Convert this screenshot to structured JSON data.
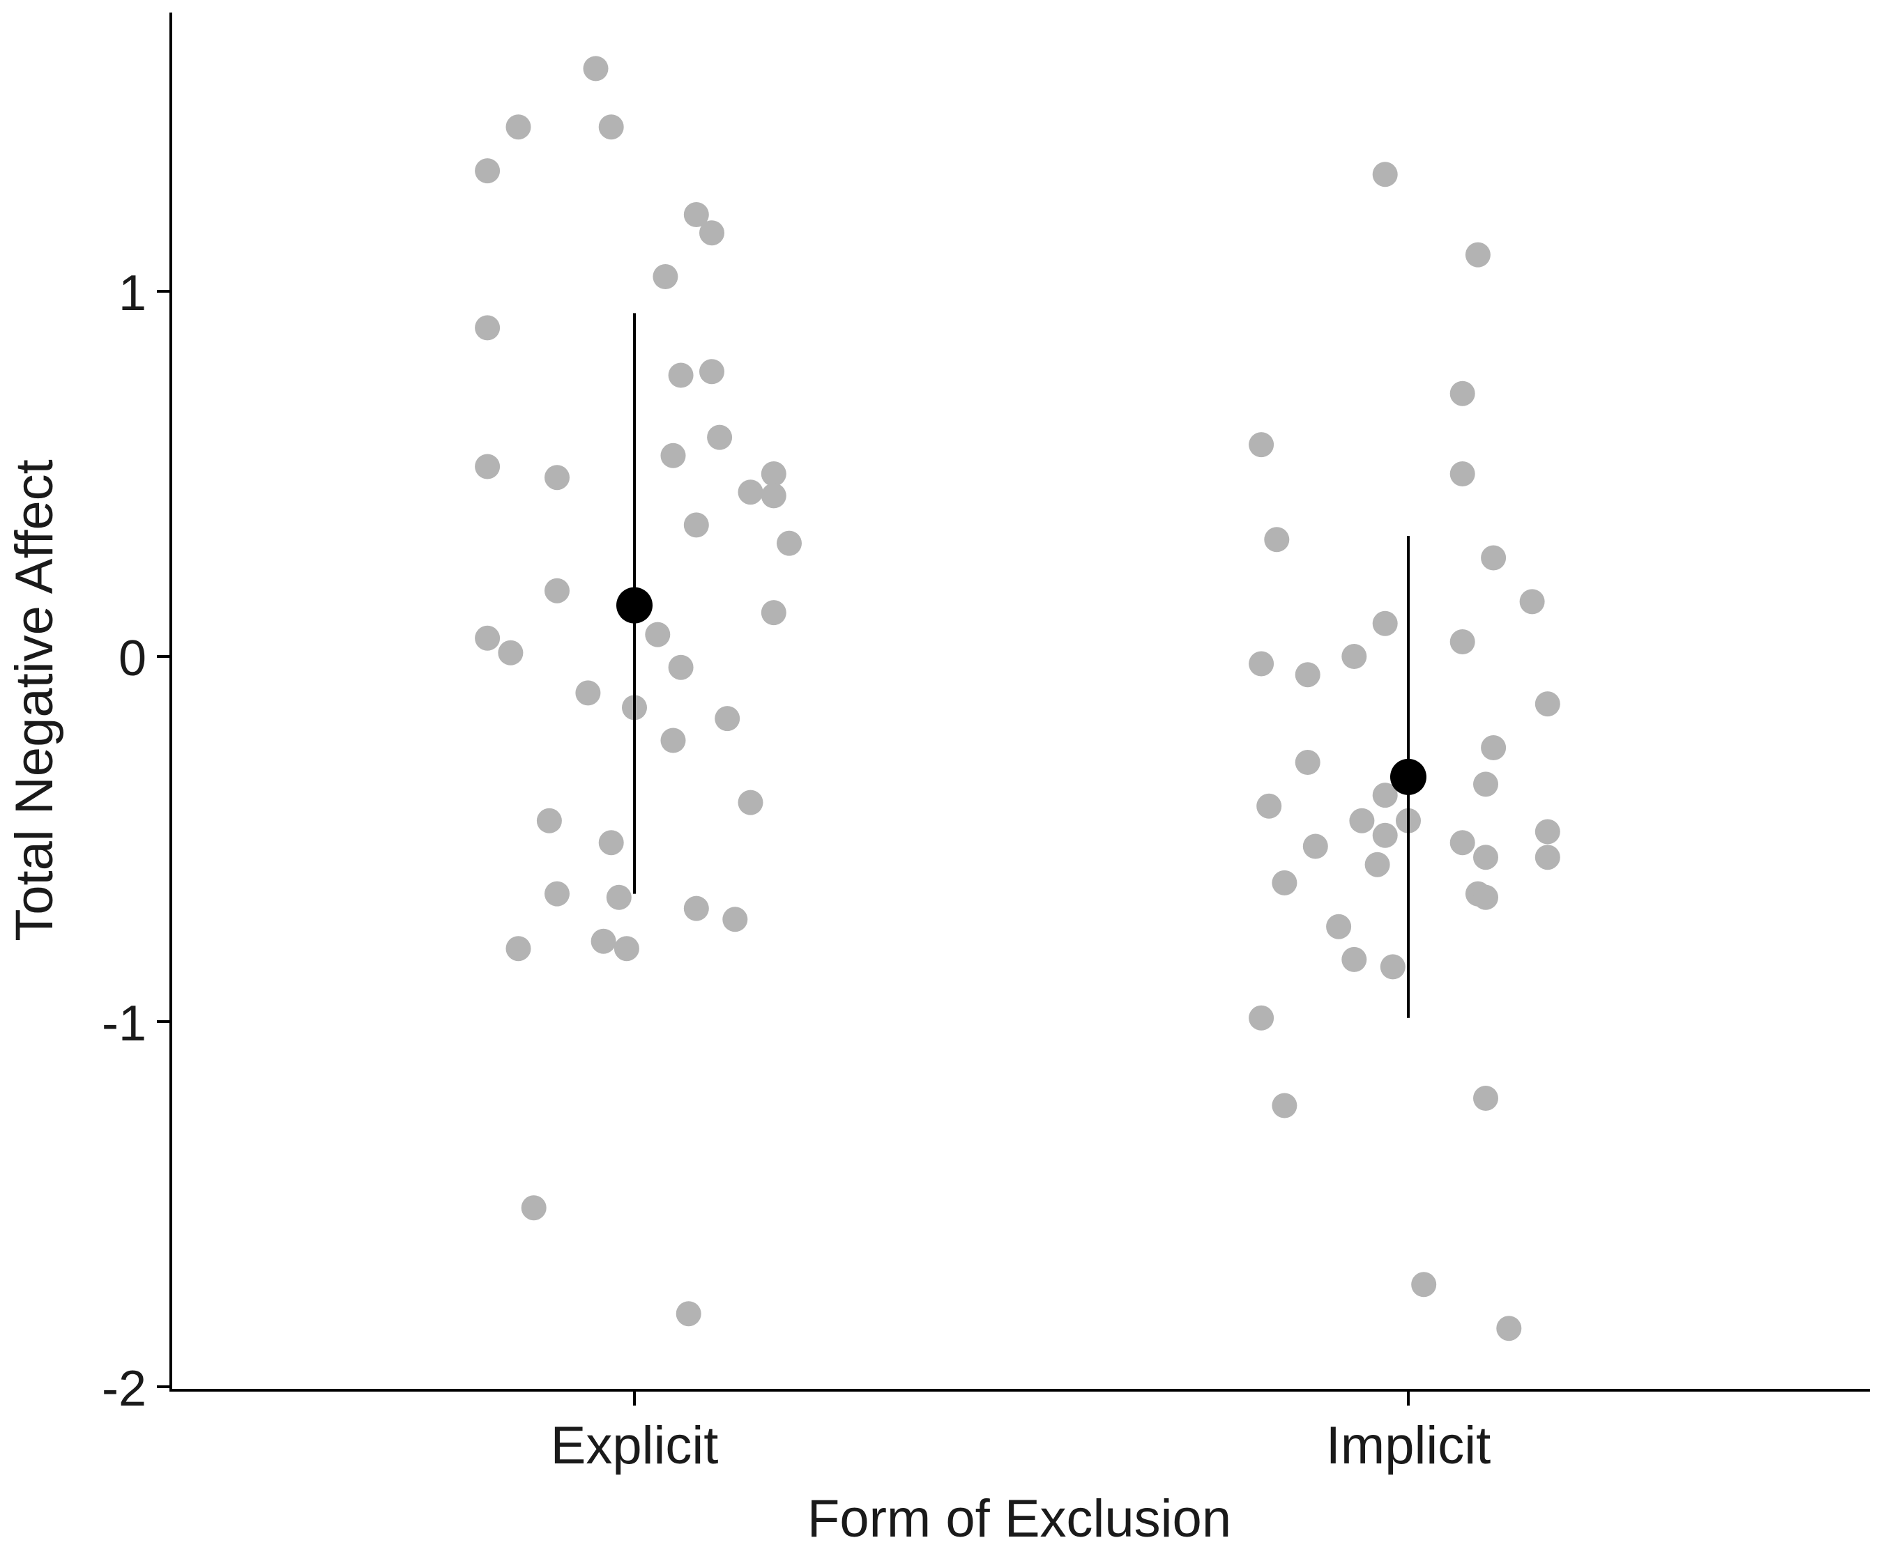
{
  "chart_data": {
    "type": "scatter",
    "xlabel": "Form of Exclusion",
    "ylabel": "Total Negative Affect",
    "categories": [
      "Explicit",
      "Implicit"
    ],
    "ylim": [
      -2,
      1.78
    ],
    "yticks": [
      -2,
      -1,
      0,
      1
    ],
    "grid": false,
    "legend": "none",
    "colors": {
      "points": "#b3b3b3",
      "summary": "#000000",
      "axis": "#000000"
    },
    "points": [
      {
        "category": "Explicit",
        "jitter": -0.19,
        "y": 1.33
      },
      {
        "category": "Explicit",
        "jitter": -0.15,
        "y": 1.45
      },
      {
        "category": "Explicit",
        "jitter": -0.05,
        "y": 1.61
      },
      {
        "category": "Explicit",
        "jitter": -0.03,
        "y": 1.45
      },
      {
        "category": "Explicit",
        "jitter": 0.08,
        "y": 1.21
      },
      {
        "category": "Explicit",
        "jitter": 0.1,
        "y": 1.16
      },
      {
        "category": "Explicit",
        "jitter": 0.04,
        "y": 1.04
      },
      {
        "category": "Explicit",
        "jitter": -0.19,
        "y": 0.9
      },
      {
        "category": "Explicit",
        "jitter": 0.06,
        "y": 0.77
      },
      {
        "category": "Explicit",
        "jitter": 0.1,
        "y": 0.78
      },
      {
        "category": "Explicit",
        "jitter": 0.11,
        "y": 0.6
      },
      {
        "category": "Explicit",
        "jitter": 0.05,
        "y": 0.55
      },
      {
        "category": "Explicit",
        "jitter": -0.19,
        "y": 0.52
      },
      {
        "category": "Explicit",
        "jitter": -0.1,
        "y": 0.49
      },
      {
        "category": "Explicit",
        "jitter": 0.18,
        "y": 0.5
      },
      {
        "category": "Explicit",
        "jitter": 0.15,
        "y": 0.45
      },
      {
        "category": "Explicit",
        "jitter": 0.18,
        "y": 0.44
      },
      {
        "category": "Explicit",
        "jitter": 0.08,
        "y": 0.36
      },
      {
        "category": "Explicit",
        "jitter": 0.2,
        "y": 0.31
      },
      {
        "category": "Explicit",
        "jitter": -0.1,
        "y": 0.18
      },
      {
        "category": "Explicit",
        "jitter": 0.18,
        "y": 0.12
      },
      {
        "category": "Explicit",
        "jitter": 0.03,
        "y": 0.06
      },
      {
        "category": "Explicit",
        "jitter": -0.19,
        "y": 0.05
      },
      {
        "category": "Explicit",
        "jitter": -0.16,
        "y": 0.01
      },
      {
        "category": "Explicit",
        "jitter": 0.06,
        "y": -0.03
      },
      {
        "category": "Explicit",
        "jitter": -0.06,
        "y": -0.1
      },
      {
        "category": "Explicit",
        "jitter": 0.0,
        "y": -0.14
      },
      {
        "category": "Explicit",
        "jitter": 0.12,
        "y": -0.17
      },
      {
        "category": "Explicit",
        "jitter": 0.05,
        "y": -0.23
      },
      {
        "category": "Explicit",
        "jitter": 0.15,
        "y": -0.4
      },
      {
        "category": "Explicit",
        "jitter": -0.11,
        "y": -0.45
      },
      {
        "category": "Explicit",
        "jitter": -0.03,
        "y": -0.51
      },
      {
        "category": "Explicit",
        "jitter": -0.1,
        "y": -0.65
      },
      {
        "category": "Explicit",
        "jitter": -0.02,
        "y": -0.66
      },
      {
        "category": "Explicit",
        "jitter": 0.08,
        "y": -0.69
      },
      {
        "category": "Explicit",
        "jitter": 0.13,
        "y": -0.72
      },
      {
        "category": "Explicit",
        "jitter": -0.15,
        "y": -0.8
      },
      {
        "category": "Explicit",
        "jitter": -0.04,
        "y": -0.78
      },
      {
        "category": "Explicit",
        "jitter": -0.01,
        "y": -0.8
      },
      {
        "category": "Explicit",
        "jitter": -0.13,
        "y": -1.51
      },
      {
        "category": "Explicit",
        "jitter": 0.07,
        "y": -1.8
      },
      {
        "category": "Implicit",
        "jitter": -0.03,
        "y": 1.32
      },
      {
        "category": "Implicit",
        "jitter": 0.09,
        "y": 1.1
      },
      {
        "category": "Implicit",
        "jitter": 0.07,
        "y": 0.72
      },
      {
        "category": "Implicit",
        "jitter": -0.19,
        "y": 0.58
      },
      {
        "category": "Implicit",
        "jitter": 0.07,
        "y": 0.5
      },
      {
        "category": "Implicit",
        "jitter": -0.17,
        "y": 0.32
      },
      {
        "category": "Implicit",
        "jitter": 0.11,
        "y": 0.27
      },
      {
        "category": "Implicit",
        "jitter": 0.16,
        "y": 0.15
      },
      {
        "category": "Implicit",
        "jitter": -0.03,
        "y": 0.09
      },
      {
        "category": "Implicit",
        "jitter": 0.07,
        "y": 0.04
      },
      {
        "category": "Implicit",
        "jitter": -0.07,
        "y": 0.0
      },
      {
        "category": "Implicit",
        "jitter": -0.19,
        "y": -0.02
      },
      {
        "category": "Implicit",
        "jitter": -0.13,
        "y": -0.05
      },
      {
        "category": "Implicit",
        "jitter": 0.18,
        "y": -0.13
      },
      {
        "category": "Implicit",
        "jitter": 0.11,
        "y": -0.25
      },
      {
        "category": "Implicit",
        "jitter": -0.13,
        "y": -0.29
      },
      {
        "category": "Implicit",
        "jitter": 0.1,
        "y": -0.35
      },
      {
        "category": "Implicit",
        "jitter": -0.03,
        "y": -0.38
      },
      {
        "category": "Implicit",
        "jitter": -0.18,
        "y": -0.41
      },
      {
        "category": "Implicit",
        "jitter": -0.06,
        "y": -0.45
      },
      {
        "category": "Implicit",
        "jitter": 0.0,
        "y": -0.45
      },
      {
        "category": "Implicit",
        "jitter": -0.03,
        "y": -0.49
      },
      {
        "category": "Implicit",
        "jitter": 0.18,
        "y": -0.48
      },
      {
        "category": "Implicit",
        "jitter": -0.12,
        "y": -0.52
      },
      {
        "category": "Implicit",
        "jitter": 0.07,
        "y": -0.51
      },
      {
        "category": "Implicit",
        "jitter": 0.1,
        "y": -0.55
      },
      {
        "category": "Implicit",
        "jitter": 0.18,
        "y": -0.55
      },
      {
        "category": "Implicit",
        "jitter": -0.04,
        "y": -0.57
      },
      {
        "category": "Implicit",
        "jitter": -0.16,
        "y": -0.62
      },
      {
        "category": "Implicit",
        "jitter": 0.09,
        "y": -0.65
      },
      {
        "category": "Implicit",
        "jitter": 0.1,
        "y": -0.66
      },
      {
        "category": "Implicit",
        "jitter": -0.09,
        "y": -0.74
      },
      {
        "category": "Implicit",
        "jitter": -0.07,
        "y": -0.83
      },
      {
        "category": "Implicit",
        "jitter": -0.02,
        "y": -0.85
      },
      {
        "category": "Implicit",
        "jitter": -0.19,
        "y": -0.99
      },
      {
        "category": "Implicit",
        "jitter": -0.16,
        "y": -1.23
      },
      {
        "category": "Implicit",
        "jitter": 0.1,
        "y": -1.21
      },
      {
        "category": "Implicit",
        "jitter": 0.02,
        "y": -1.72
      },
      {
        "category": "Implicit",
        "jitter": 0.13,
        "y": -1.84
      }
    ],
    "summary": [
      {
        "category": "Explicit",
        "mean": 0.14,
        "lower": -0.65,
        "upper": 0.94
      },
      {
        "category": "Implicit",
        "mean": -0.33,
        "lower": -0.99,
        "upper": 0.33
      }
    ]
  }
}
